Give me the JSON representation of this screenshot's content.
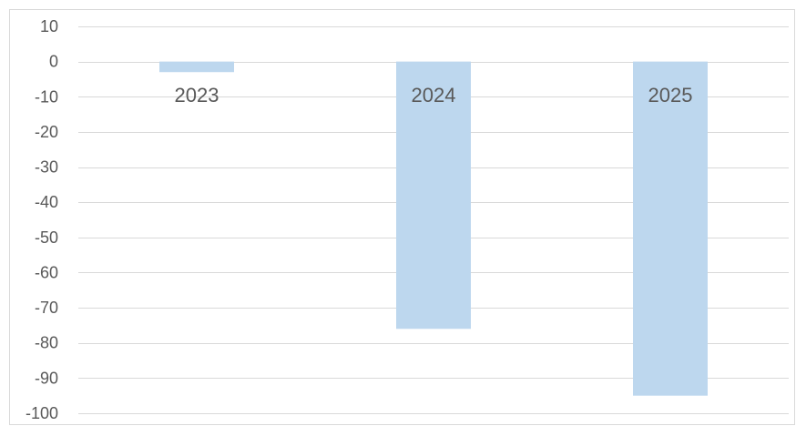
{
  "chart_data": {
    "type": "bar",
    "categories": [
      "2023",
      "2024",
      "2025"
    ],
    "values": [
      -3,
      -76,
      -95
    ],
    "title": "",
    "xlabel": "",
    "ylabel": "",
    "ylim": [
      -100,
      10
    ],
    "yticks": [
      10,
      0,
      -10,
      -20,
      -30,
      -40,
      -50,
      -60,
      -70,
      -80,
      -90,
      -100
    ],
    "grid": true,
    "legend": "none",
    "bar_color": "#bdd7ee",
    "gridline_color": "#d9d9d9"
  }
}
